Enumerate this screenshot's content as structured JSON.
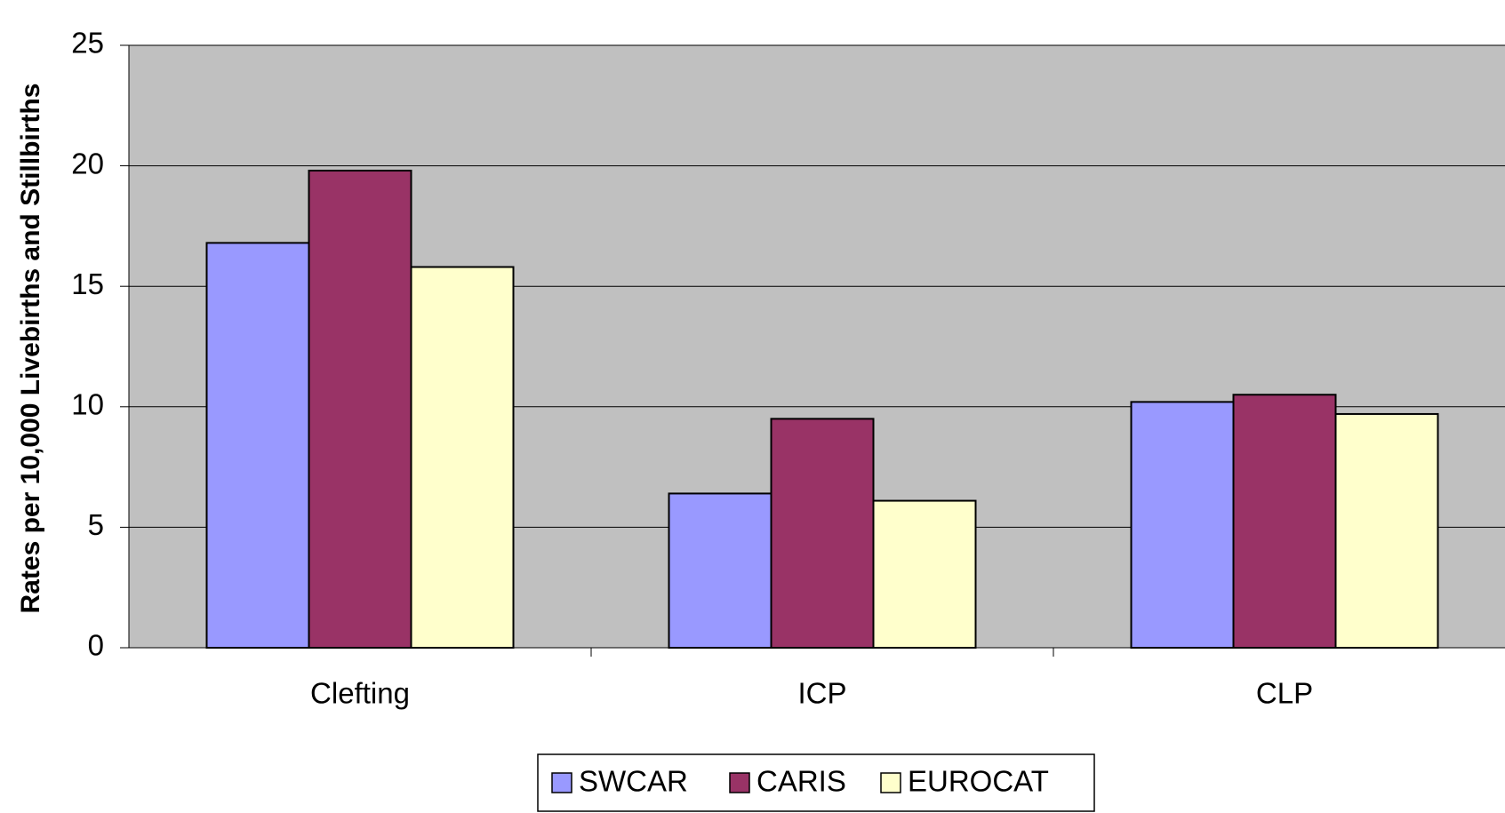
{
  "chart_data": {
    "type": "bar",
    "ylabel": "Rates per 10,000 Livebirths and Stillbirths",
    "categories": [
      "Clefting",
      "ICP",
      "CLP"
    ],
    "series": [
      {
        "name": "SWCAR",
        "color": "#9999ff",
        "values": [
          16.8,
          6.4,
          10.2
        ]
      },
      {
        "name": "CARIS",
        "color": "#993366",
        "values": [
          19.8,
          9.5,
          10.5
        ]
      },
      {
        "name": "EUROCAT",
        "color": "#ffffcc",
        "values": [
          15.8,
          6.1,
          9.7
        ]
      }
    ],
    "ylim": [
      0,
      25
    ],
    "yticks": [
      0,
      5,
      10,
      15,
      20,
      25
    ],
    "grid": true,
    "legend": "bottom"
  }
}
